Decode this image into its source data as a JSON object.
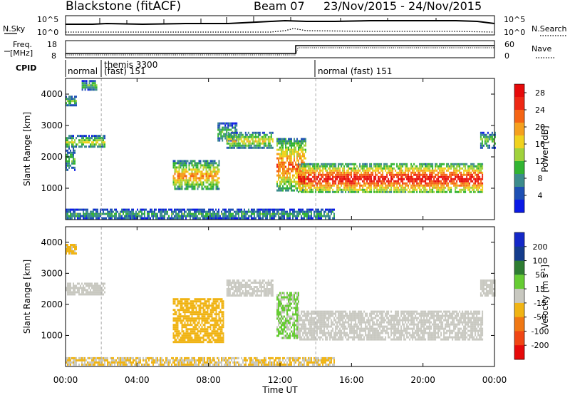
{
  "header": {
    "station": "Blackstone (fitACF)",
    "beam": "Beam 07",
    "date_range": "23/Nov/2015 - 24/Nov/2015"
  },
  "noise_panel": {
    "left_label": "N.Sky",
    "right_label": "N.Search",
    "left_ticks": [
      "10^5",
      "10^0"
    ],
    "right_ticks": [
      "10^5",
      "10^0"
    ]
  },
  "freq_panel": {
    "left_label_1": "Freq.",
    "left_label_2": "[MHz]",
    "right_label": "Nave",
    "left_ticks": [
      "18",
      "8"
    ],
    "right_ticks": [
      "60",
      "0"
    ]
  },
  "cpid_panel": {
    "label": "CPID",
    "segments": [
      {
        "text": "normal",
        "start_h": 0.0
      },
      {
        "text": "themis 3300",
        "start_h": 2.0
      },
      {
        "text": "(fast) 151",
        "start_h": 2.0
      },
      {
        "text": "normal (fast) 151",
        "start_h": 14.0
      }
    ]
  },
  "x_axis": {
    "label": "Time UT",
    "ticks": [
      "00:00",
      "04:00",
      "08:00",
      "12:00",
      "16:00",
      "20:00",
      "00:00"
    ],
    "range_hours": [
      0,
      24
    ]
  },
  "chart_data": [
    {
      "type": "heatmap",
      "name": "power",
      "ylabel": "Slant Range [km]",
      "yticks": [
        "1000",
        "2000",
        "3000",
        "4000"
      ],
      "ylim": [
        0,
        4500
      ],
      "xlim_hours": [
        0,
        24
      ],
      "colorbar": {
        "label": "Power [dB]",
        "ticks": [
          "4",
          "8",
          "12",
          "16",
          "20",
          "24",
          "28"
        ],
        "range": [
          0,
          30
        ],
        "colors": [
          "#0a1ae6",
          "#1e50b4",
          "#3c8c8c",
          "#32b432",
          "#a0d23c",
          "#f0d21e",
          "#f5a01e",
          "#f56414",
          "#ee2814",
          "#e60a0a"
        ]
      },
      "echo_regions": [
        {
          "t0": 0.0,
          "t1": 0.6,
          "r0": 3650,
          "r1": 3950,
          "power": 10
        },
        {
          "t0": 0.9,
          "t1": 1.7,
          "r0": 4150,
          "r1": 4450,
          "power": 9
        },
        {
          "t0": 0.0,
          "t1": 2.2,
          "r0": 2300,
          "r1": 2700,
          "power": 12
        },
        {
          "t0": 0.0,
          "t1": 0.5,
          "r0": 1600,
          "r1": 2300,
          "power": 9
        },
        {
          "t0": 6.0,
          "t1": 8.6,
          "r0": 950,
          "r1": 1900,
          "power": 16
        },
        {
          "t0": 8.5,
          "t1": 9.6,
          "r0": 2500,
          "r1": 3100,
          "power": 9
        },
        {
          "t0": 9.0,
          "t1": 11.6,
          "r0": 2300,
          "r1": 2800,
          "power": 13
        },
        {
          "t0": 11.8,
          "t1": 13.4,
          "r0": 900,
          "r1": 2600,
          "power": 18
        },
        {
          "t0": 13.0,
          "t1": 23.3,
          "r0": 850,
          "r1": 1800,
          "power": 22
        },
        {
          "t0": 23.2,
          "t1": 24.0,
          "r0": 2300,
          "r1": 2800,
          "power": 10
        },
        {
          "t0": 0.0,
          "t1": 15.0,
          "r0": 50,
          "r1": 350,
          "power": 8
        }
      ]
    },
    {
      "type": "heatmap",
      "name": "velocity",
      "ylabel": "Slant Range [km]",
      "yticks": [
        "1000",
        "2000",
        "3000",
        "4000"
      ],
      "ylim": [
        0,
        4500
      ],
      "xlim_hours": [
        0,
        24
      ],
      "colorbar": {
        "label": "Velocity [m s^-1]",
        "ticks": [
          "200",
          "100",
          "50",
          "15",
          "-15",
          "-50",
          "-100",
          "-200"
        ],
        "range": [
          -250,
          250
        ],
        "colors": [
          "#1428c8",
          "#143c8c",
          "#2e7d32",
          "#66cc33",
          "#c8c8c0",
          "#f0b414",
          "#f07814",
          "#f04614",
          "#e60a0a"
        ]
      },
      "echo_regions": [
        {
          "t0": 0.0,
          "t1": 0.6,
          "r0": 3650,
          "r1": 3950,
          "velocity": -40
        },
        {
          "t0": 0.0,
          "t1": 2.2,
          "r0": 2300,
          "r1": 2700,
          "velocity": 0
        },
        {
          "t0": 6.0,
          "t1": 8.8,
          "r0": 800,
          "r1": 2200,
          "velocity": -45
        },
        {
          "t0": 9.0,
          "t1": 11.6,
          "r0": 2300,
          "r1": 2800,
          "velocity": 0
        },
        {
          "t0": 11.8,
          "t1": 13.0,
          "r0": 900,
          "r1": 2400,
          "velocity": 30
        },
        {
          "t0": 13.0,
          "t1": 23.3,
          "r0": 850,
          "r1": 1800,
          "velocity": 0
        },
        {
          "t0": 23.2,
          "t1": 24.0,
          "r0": 2300,
          "r1": 2800,
          "velocity": 0
        },
        {
          "t0": 0.0,
          "t1": 15.0,
          "r0": 50,
          "r1": 300,
          "velocity": -30
        }
      ]
    }
  ]
}
